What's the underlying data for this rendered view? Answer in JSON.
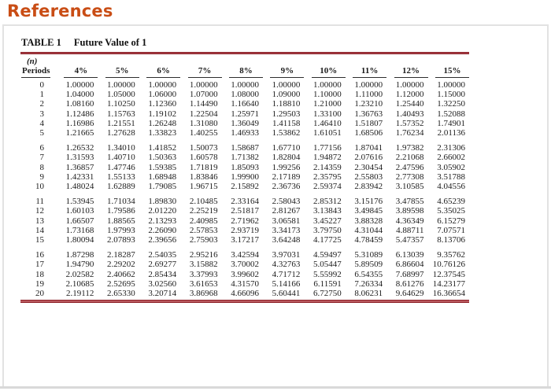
{
  "header": {
    "title": "References"
  },
  "theme": {
    "accent": "#c94d15",
    "rule": "#8d2129",
    "rule-fill": "#b9585e",
    "underline": "#2e2e2e"
  },
  "table": {
    "label": "TABLE 1",
    "title": "Future Value of 1",
    "periods_header_top": "(n)",
    "periods_header_bottom": "Periods",
    "columns": [
      "4%",
      "5%",
      "6%",
      "7%",
      "8%",
      "9%",
      "10%",
      "11%",
      "12%",
      "15%"
    ],
    "row_groups": [
      {
        "rows": [
          {
            "n": "0",
            "values": [
              "1.00000",
              "1.00000",
              "1.00000",
              "1.00000",
              "1.00000",
              "1.00000",
              "1.00000",
              "1.00000",
              "1.00000",
              "1.00000"
            ]
          },
          {
            "n": "1",
            "values": [
              "1.04000",
              "1.05000",
              "1.06000",
              "1.07000",
              "1.08000",
              "1.09000",
              "1.10000",
              "1.11000",
              "1.12000",
              "1.15000"
            ]
          },
          {
            "n": "2",
            "values": [
              "1.08160",
              "1.10250",
              "1.12360",
              "1.14490",
              "1.16640",
              "1.18810",
              "1.21000",
              "1.23210",
              "1.25440",
              "1.32250"
            ]
          },
          {
            "n": "3",
            "values": [
              "1.12486",
              "1.15763",
              "1.19102",
              "1.22504",
              "1.25971",
              "1.29503",
              "1.33100",
              "1.36763",
              "1.40493",
              "1.52088"
            ]
          },
          {
            "n": "4",
            "values": [
              "1.16986",
              "1.21551",
              "1.26248",
              "1.31080",
              "1.36049",
              "1.41158",
              "1.46410",
              "1.51807",
              "1.57352",
              "1.74901"
            ]
          },
          {
            "n": "5",
            "values": [
              "1.21665",
              "1.27628",
              "1.33823",
              "1.40255",
              "1.46933",
              "1.53862",
              "1.61051",
              "1.68506",
              "1.76234",
              "2.01136"
            ]
          }
        ]
      },
      {
        "rows": [
          {
            "n": "6",
            "values": [
              "1.26532",
              "1.34010",
              "1.41852",
              "1.50073",
              "1.58687",
              "1.67710",
              "1.77156",
              "1.87041",
              "1.97382",
              "2.31306"
            ]
          },
          {
            "n": "7",
            "values": [
              "1.31593",
              "1.40710",
              "1.50363",
              "1.60578",
              "1.71382",
              "1.82804",
              "1.94872",
              "2.07616",
              "2.21068",
              "2.66002"
            ]
          },
          {
            "n": "8",
            "values": [
              "1.36857",
              "1.47746",
              "1.59385",
              "1.71819",
              "1.85093",
              "1.99256",
              "2.14359",
              "2.30454",
              "2.47596",
              "3.05902"
            ]
          },
          {
            "n": "9",
            "values": [
              "1.42331",
              "1.55133",
              "1.68948",
              "1.83846",
              "1.99900",
              "2.17189",
              "2.35795",
              "2.55803",
              "2.77308",
              "3.51788"
            ]
          },
          {
            "n": "10",
            "values": [
              "1.48024",
              "1.62889",
              "1.79085",
              "1.96715",
              "2.15892",
              "2.36736",
              "2.59374",
              "2.83942",
              "3.10585",
              "4.04556"
            ]
          }
        ]
      },
      {
        "rows": [
          {
            "n": "11",
            "values": [
              "1.53945",
              "1.71034",
              "1.89830",
              "2.10485",
              "2.33164",
              "2.58043",
              "2.85312",
              "3.15176",
              "3.47855",
              "4.65239"
            ]
          },
          {
            "n": "12",
            "values": [
              "1.60103",
              "1.79586",
              "2.01220",
              "2.25219",
              "2.51817",
              "2.81267",
              "3.13843",
              "3.49845",
              "3.89598",
              "5.35025"
            ]
          },
          {
            "n": "13",
            "values": [
              "1.66507",
              "1.88565",
              "2.13293",
              "2.40985",
              "2.71962",
              "3.06581",
              "3.45227",
              "3.88328",
              "4.36349",
              "6.15279"
            ]
          },
          {
            "n": "14",
            "values": [
              "1.73168",
              "1.97993",
              "2.26090",
              "2.57853",
              "2.93719",
              "3.34173",
              "3.79750",
              "4.31044",
              "4.88711",
              "7.07571"
            ]
          },
          {
            "n": "15",
            "values": [
              "1.80094",
              "2.07893",
              "2.39656",
              "2.75903",
              "3.17217",
              "3.64248",
              "4.17725",
              "4.78459",
              "5.47357",
              "8.13706"
            ]
          }
        ]
      },
      {
        "rows": [
          {
            "n": "16",
            "values": [
              "1.87298",
              "2.18287",
              "2.54035",
              "2.95216",
              "3.42594",
              "3.97031",
              "4.59497",
              "5.31089",
              "6.13039",
              "9.35762"
            ]
          },
          {
            "n": "17",
            "values": [
              "1.94790",
              "2.29202",
              "2.69277",
              "3.15882",
              "3.70002",
              "4.32763",
              "5.05447",
              "5.89509",
              "6.86604",
              "10.76126"
            ]
          },
          {
            "n": "18",
            "values": [
              "2.02582",
              "2.40662",
              "2.85434",
              "3.37993",
              "3.99602",
              "4.71712",
              "5.55992",
              "6.54355",
              "7.68997",
              "12.37545"
            ]
          },
          {
            "n": "19",
            "values": [
              "2.10685",
              "2.52695",
              "3.02560",
              "3.61653",
              "4.31570",
              "5.14166",
              "6.11591",
              "7.26334",
              "8.61276",
              "14.23177"
            ]
          },
          {
            "n": "20",
            "values": [
              "2.19112",
              "2.65330",
              "3.20714",
              "3.86968",
              "4.66096",
              "5.60441",
              "6.72750",
              "8.06231",
              "9.64629",
              "16.36654"
            ]
          }
        ]
      }
    ]
  }
}
